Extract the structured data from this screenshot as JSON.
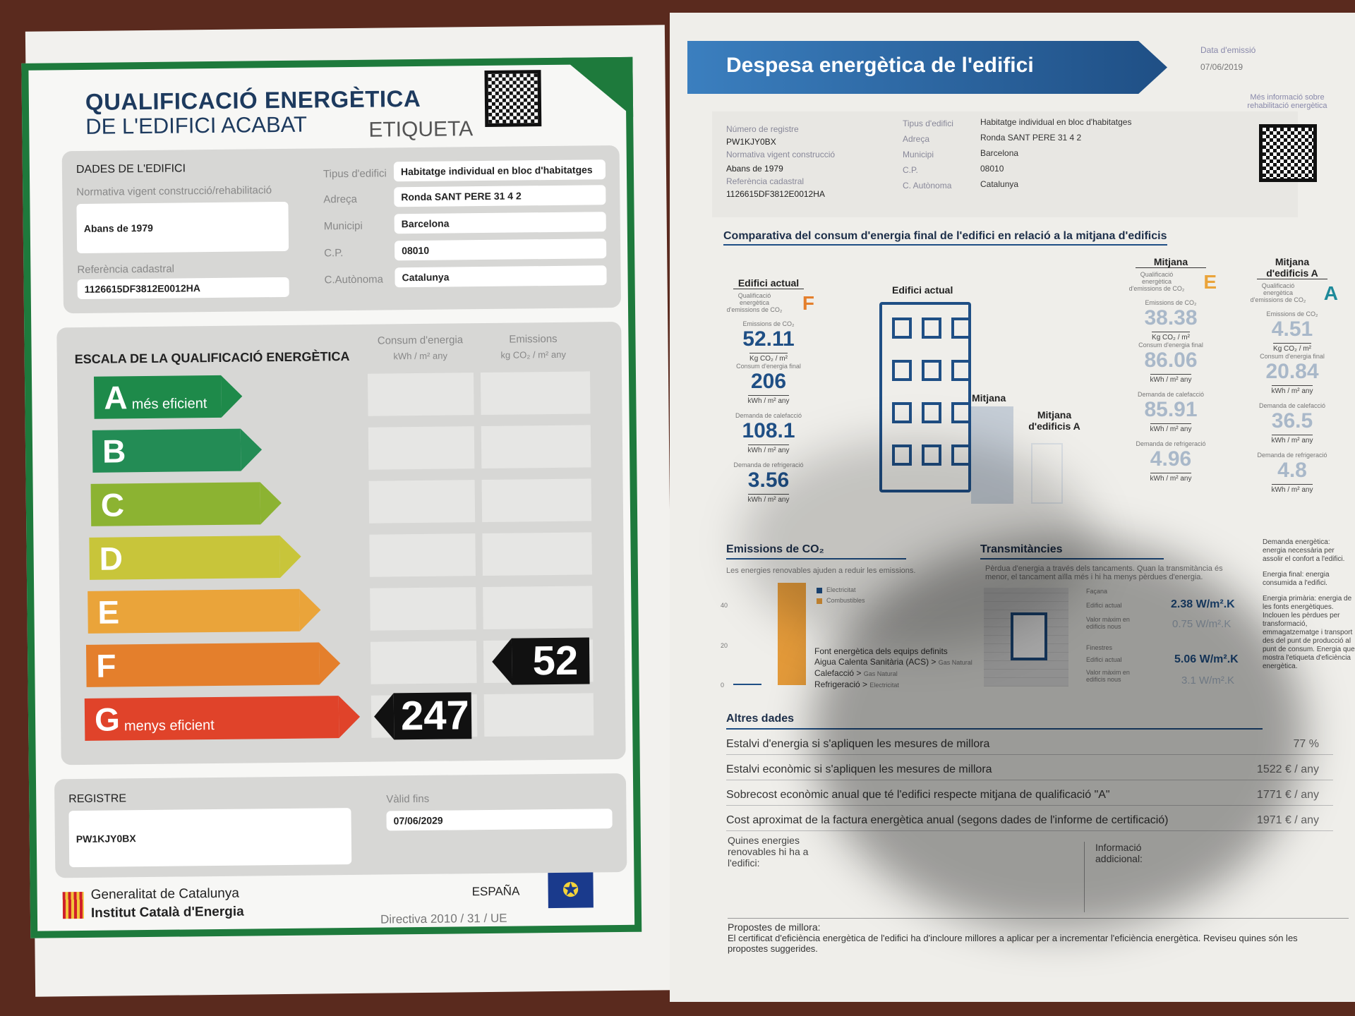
{
  "label": {
    "title_line1": "QUALIFICACIÓ ENERGÈTICA",
    "title_line2": "DE L'EDIFICI ACABAT",
    "etiqueta": "ETIQUETA",
    "dades_heading": "DADES DE L'EDIFICI",
    "normativa_label": "Normativa vigent construcció/rehabilitació",
    "normativa_value": "Abans de 1979",
    "referencia_label": "Referència cadastral",
    "referencia_value": "1126615DF3812E0012HA",
    "fields": [
      {
        "label": "Tipus d'edifici",
        "value": "Habitatge individual en bloc d'habitatges"
      },
      {
        "label": "Adreça",
        "value": "Ronda SANT PERE 31 4 2"
      },
      {
        "label": "Municipi",
        "value": "Barcelona"
      },
      {
        "label": "C.P.",
        "value": "08010"
      },
      {
        "label": "C.Autònoma",
        "value": "Catalunya"
      }
    ],
    "escala_heading": "ESCALA DE LA QUALIFICACIÓ ENERGÈTICA",
    "consum_header": "Consum d'energia",
    "consum_unit": "kWh / m² any",
    "emissions_header": "Emissions",
    "emissions_unit": "kg CO₂ / m² any",
    "classes": [
      {
        "letter": "A",
        "note": "més eficient",
        "color": "#1e8a4a"
      },
      {
        "letter": "B",
        "note": "",
        "color": "#238c55"
      },
      {
        "letter": "C",
        "note": "",
        "color": "#8cb332"
      },
      {
        "letter": "D",
        "note": "",
        "color": "#c8c53a"
      },
      {
        "letter": "E",
        "note": "",
        "color": "#eaa43a"
      },
      {
        "letter": "F",
        "note": "",
        "color": "#e47f2c"
      },
      {
        "letter": "G",
        "note": "menys eficient",
        "color": "#e0432a"
      }
    ],
    "consum_value": "247",
    "consum_class": "G",
    "emissions_value": "52",
    "emissions_class": "F",
    "registre_label": "REGISTRE",
    "registre_value": "PW1KJY0BX",
    "valid_label": "Vàlid fins",
    "valid_value": "07/06/2029",
    "generalitat": "Generalitat de Catalunya",
    "institut": "Institut Català d'Energia",
    "espana": "ESPAÑA",
    "directiva": "Directiva 2010 / 31 / UE"
  },
  "report": {
    "title": "Despesa energètica de l'edifici",
    "data_emissio_label": "Data d'emissió",
    "data_emissio_value": "07/06/2019",
    "numero_label": "Número de registre",
    "numero_value": "PW1KJY0BX",
    "normativa_label": "Normativa vigent construcció",
    "normativa_value": "Abans de 1979",
    "referencia_label": "Referència cadastral",
    "referencia_value": "1126615DF3812E0012HA",
    "fields": [
      {
        "label": "Tipus d'edifici",
        "value": "Habitatge individual en bloc d'habitatges"
      },
      {
        "label": "Adreça",
        "value": "Ronda SANT PERE 31 4 2"
      },
      {
        "label": "Municipi",
        "value": "Barcelona"
      },
      {
        "label": "C.P.",
        "value": "08010"
      },
      {
        "label": "C. Autònoma",
        "value": "Catalunya"
      }
    ],
    "mes_info": "Més informació sobre rehabilitació energètica",
    "comparativa_title": "Comparativa del consum d'energia final de l'edifici en relació a la mitjana d'edificis",
    "qualif_label": "Qualificació energètica d'emissions de CO₂",
    "emissions_label": "Emissions de CO₂",
    "emissions_unit": "Kg CO₂ / m²",
    "consum_label": "Consum d'energia final",
    "kwh_unit": "kWh / m² any",
    "calefaccio_label": "Demanda de calefacció",
    "refrigeracio_label": "Demanda de refrigeració",
    "columns": [
      {
        "heading": "Edifici actual",
        "class": "F",
        "class_color": "#e47f2c",
        "emissions": "52.11",
        "consum": "206",
        "calefaccio": "108.1",
        "refrigeracio": "3.56"
      },
      {
        "heading": "Mitjana",
        "class": "E",
        "class_color": "#eaa43a",
        "emissions": "38.38",
        "consum": "86.06",
        "calefaccio": "85.91",
        "refrigeracio": "4.96"
      },
      {
        "heading": "Mitjana d'edificis A",
        "class": "A",
        "class_color": "#1e8a9a",
        "emissions": "4.51",
        "consum": "20.84",
        "calefaccio": "36.5",
        "refrigeracio": "4.8"
      }
    ],
    "illustration_labels": {
      "actual": "Edifici actual",
      "mitjana": "Mitjana",
      "mitjana_a": "Mitjana d'edificis A"
    },
    "co2": {
      "title": "Emissions de CO₂",
      "subtitle": "Les energies renovables ajuden a reduir les emissions.",
      "axis_ticks": [
        "40",
        "20",
        "0"
      ],
      "legend": [
        "Electricitat",
        "Combustibles"
      ],
      "legend_colors": [
        "#1f4f85",
        "#e39a3a"
      ],
      "font_title": "Font energètica dels equips definits",
      "acs": "Aigua Calenta Sanitària (ACS) >",
      "acs_value": "Gas Natural",
      "calefaccio": "Calefacció >",
      "calefaccio_value": "Gas Natural",
      "refrigeracio": "Refrigeració >",
      "refrigeracio_value": "Electricitat"
    },
    "trans": {
      "title": "Transmitàncies",
      "subtitle": "Pèrdua d'energia a través dels tancaments. Quan la transmitància és menor, el tancament aïlla més i hi ha menys pèrdues d'energia.",
      "facana": "Façana",
      "finestres": "Finestres",
      "actual": "Edifici actual",
      "maxim": "Valor màxim en edificis nous",
      "facana_actual": "2.38 W/m².K",
      "facana_max": "0.75 W/m².K",
      "finestres_actual": "5.06 W/m².K",
      "finestres_max": "3.1 W/m².K"
    },
    "glossary": [
      "Demanda energètica: energia necessària per assolir el confort a l'edifici.",
      "Energia final: energia consumida a l'edifici.",
      "Energia primària: energia de les fonts energètiques. Inclouen les pèrdues per transformació, emmagatzematge i transport des del punt de producció al punt de consum. Energia que mostra l'etiqueta d'eficiència energètica."
    ],
    "altres_title": "Altres dades",
    "altres": [
      {
        "label": "Estalvi d'energia si s'apliquen les mesures de millora",
        "value": "77 %"
      },
      {
        "label": "Estalvi econòmic si s'apliquen les mesures de millora",
        "value": "1522 € / any"
      },
      {
        "label": "Sobrecost econòmic anual que té l'edifici respecte mitjana de qualificació \"A\"",
        "value": "1771 € / any"
      },
      {
        "label": "Cost aproximat de la factura energètica anual (segons dades de l'informe de certificació)",
        "value": "1971 € / any"
      }
    ],
    "renovables": "Quines energies renovables hi ha a l'edifici:",
    "info_adicional": "Informació addicional:",
    "propostes_title": "Propostes de millora:",
    "propostes_text": "El certificat d'eficiència energètica de l'edifici ha d'incloure millores a aplicar per a incrementar l'eficiència energètica. Reviseu quines són les propostes suggerides."
  }
}
